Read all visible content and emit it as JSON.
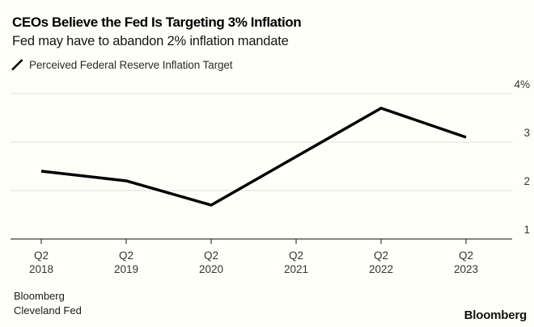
{
  "header": {
    "title": "CEOs Believe the Fed Is Targeting 3% Inflation",
    "subtitle": "Fed may have to abandon 2% inflation mandate"
  },
  "legend": {
    "label": "Perceived Federal Reserve Inflation Target"
  },
  "footer": {
    "sources": [
      "Bloomberg",
      "Cleveland Fed"
    ],
    "brand": "Bloomberg"
  },
  "colors": {
    "background": "#fffffa",
    "line": "#000000",
    "grid": "#dcdcdc",
    "axis": "#3a3a3a",
    "tick_label": "#333333"
  },
  "chart_data": {
    "type": "line",
    "title": "CEOs Believe the Fed Is Targeting 3% Inflation",
    "subtitle": "Fed may have to abandon 2% inflation mandate",
    "xlabel": "",
    "ylabel": "",
    "unit": "%",
    "categories": [
      {
        "q": "Q2",
        "year": "2018"
      },
      {
        "q": "Q2",
        "year": "2019"
      },
      {
        "q": "Q2",
        "year": "2020"
      },
      {
        "q": "Q2",
        "year": "2021"
      },
      {
        "q": "Q2",
        "year": "2022"
      },
      {
        "q": "Q2",
        "year": "2023"
      }
    ],
    "series": [
      {
        "name": "Perceived Federal Reserve Inflation Target",
        "values": [
          2.4,
          2.2,
          1.7,
          2.7,
          3.7,
          3.1
        ]
      }
    ],
    "ylim": [
      1,
      4
    ],
    "yticks": [
      {
        "value": 4,
        "label": "4%"
      },
      {
        "value": 3,
        "label": "3"
      },
      {
        "value": 2,
        "label": "2"
      },
      {
        "value": 1,
        "label": "1"
      }
    ],
    "grid": "horizontal",
    "y_axis_side": "right",
    "legend_position": "top-left"
  }
}
